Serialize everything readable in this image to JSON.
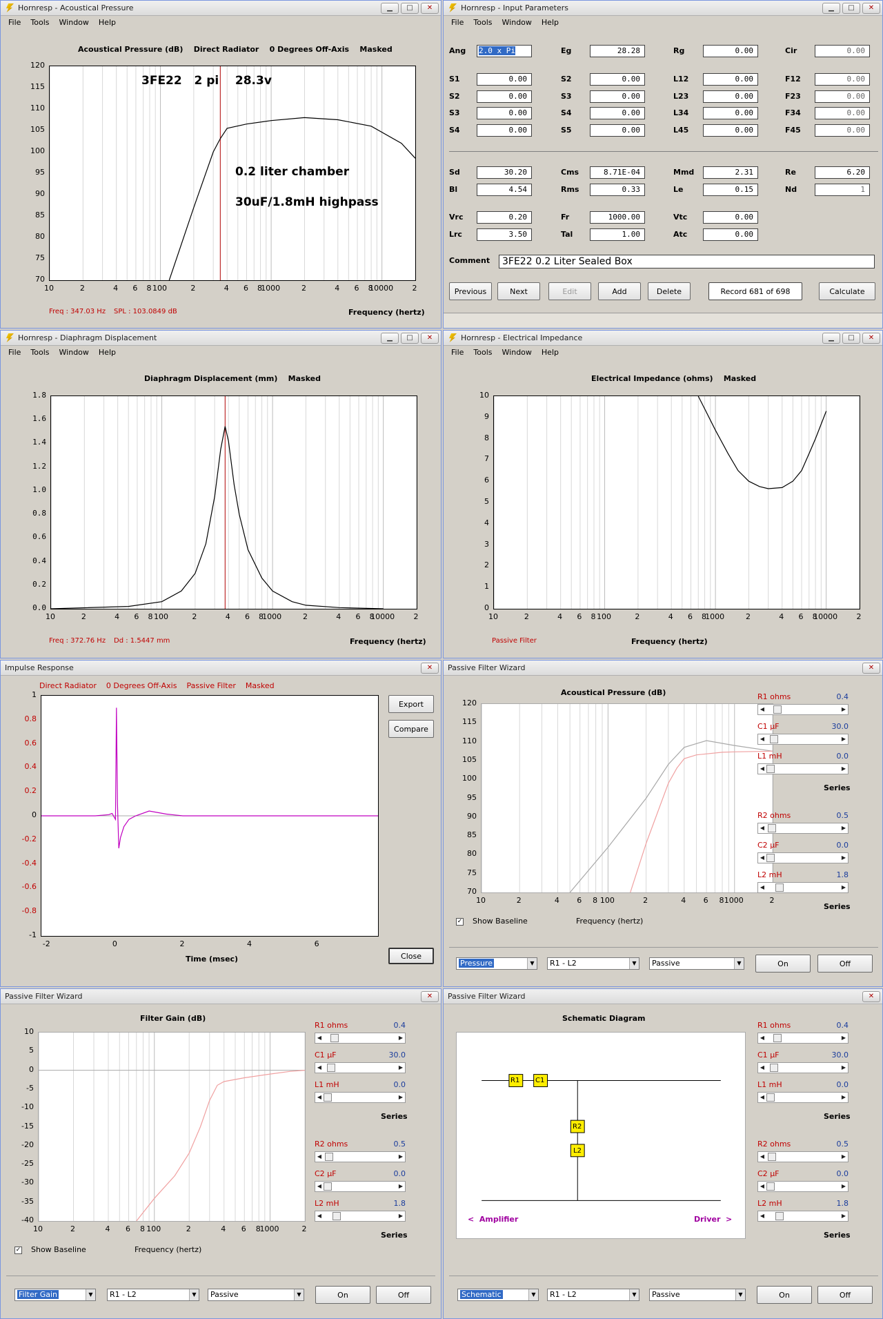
{
  "windows": {
    "acoustic": {
      "title": "Hornresp - Acoustical Pressure",
      "menu": [
        "File",
        "Tools",
        "Window",
        "Help"
      ],
      "chart_title": "Acoustical Pressure (dB)    Direct Radiator    0 Degrees Off-Axis    Masked",
      "ann1": "3FE22   2 pi    28.3v",
      "ann2": "0.2 liter chamber",
      "ann3": "30uF/1.8mH highpass",
      "readout_freq": "Freq : 347.03 Hz",
      "readout_val": "SPL : 103.0849 dB",
      "xlabel": "Frequency (hertz)"
    },
    "input": {
      "title": "Hornresp - Input Parameters",
      "menu": [
        "File",
        "Tools",
        "Window",
        "Help"
      ],
      "comment_label": "Comment",
      "comment": "3FE22  0.2 Liter Sealed Box",
      "buttons": [
        "Previous",
        "Next",
        "Edit",
        "Add",
        "Delete"
      ],
      "record": "Record 681 of 698",
      "calculate": "Calculate"
    },
    "disp": {
      "title": "Hornresp - Diaphragm Displacement",
      "menu": [
        "File",
        "Tools",
        "Window",
        "Help"
      ],
      "chart_title": "Diaphragm Displacement (mm)    Masked",
      "readout_freq": "Freq : 372.76 Hz",
      "readout_val": "Dd : 1.5447 mm",
      "xlabel": "Frequency (hertz)"
    },
    "imp": {
      "title": "Hornresp - Electrical Impedance",
      "menu": [
        "File",
        "Tools",
        "Window",
        "Help"
      ],
      "chart_title": "Electrical Impedance (ohms)    Masked",
      "note": "Passive Filter",
      "xlabel": "Frequency (hertz)"
    },
    "impulse": {
      "title": "Impulse Response",
      "header": [
        "Direct Radiator",
        "0 Degrees Off-Axis",
        "Passive Filter",
        "Masked"
      ],
      "xlabel": "Time (msec)",
      "export": "Export",
      "compare": "Compare",
      "close": "Close"
    },
    "pfw1": {
      "title": "Passive Filter Wizard",
      "chart_title": "Acoustical Pressure (dB)",
      "baseline": "Show Baseline",
      "xlabel": "Frequency (hertz)",
      "combo1": "Pressure",
      "combo2": "R1 - L2",
      "combo3": "Passive",
      "on": "On",
      "off": "Off"
    },
    "pfw2": {
      "title": "Passive Filter Wizard",
      "chart_title": "Filter Gain (dB)",
      "baseline": "Show Baseline",
      "xlabel": "Frequency (hertz)",
      "combo1": "Filter Gain",
      "combo2": "R1 - L2",
      "combo3": "Passive",
      "on": "On",
      "off": "Off"
    },
    "pfw3": {
      "title": "Passive Filter Wizard",
      "chart_title": "Schematic Diagram",
      "amp": "<  Amplifier",
      "drv": "Driver  >",
      "combo1": "Schematic",
      "combo2": "R1 - L2",
      "combo3": "Passive",
      "on": "On",
      "off": "Off",
      "parts": [
        "R1",
        "C1",
        "R2",
        "L2"
      ]
    }
  },
  "filter": {
    "g1": [
      {
        "n": "R1",
        "u": "ohms",
        "v": "0.4",
        "p": 0.1
      },
      {
        "n": "C1",
        "u": "µF",
        "v": "30.0",
        "p": 0.05
      },
      {
        "n": "L1",
        "u": "mH",
        "v": "0.0",
        "p": 0.0
      }
    ],
    "g2": [
      {
        "n": "R2",
        "u": "ohms",
        "v": "0.5",
        "p": 0.02
      },
      {
        "n": "C2",
        "u": "µF",
        "v": "0.0",
        "p": 0.0
      },
      {
        "n": "L2",
        "u": "mH",
        "v": "1.8",
        "p": 0.14
      }
    ],
    "series": "Series"
  },
  "params": {
    "r1": [
      [
        "Ang",
        "2.0 x Pi"
      ],
      [
        "Eg",
        "28.28"
      ],
      [
        "Rg",
        "0.00"
      ],
      [
        "Cir",
        "0.00"
      ]
    ],
    "rows": [
      [
        [
          "S1",
          "0.00"
        ],
        [
          "S2",
          "0.00"
        ],
        [
          "L12",
          "0.00"
        ],
        [
          "F12",
          "0.00"
        ]
      ],
      [
        [
          "S2",
          "0.00"
        ],
        [
          "S3",
          "0.00"
        ],
        [
          "L23",
          "0.00"
        ],
        [
          "F23",
          "0.00"
        ]
      ],
      [
        [
          "S3",
          "0.00"
        ],
        [
          "S4",
          "0.00"
        ],
        [
          "L34",
          "0.00"
        ],
        [
          "F34",
          "0.00"
        ]
      ],
      [
        [
          "S4",
          "0.00"
        ],
        [
          "S5",
          "0.00"
        ],
        [
          "L45",
          "0.00"
        ],
        [
          "F45",
          "0.00"
        ]
      ]
    ],
    "rows2": [
      [
        [
          "Sd",
          "30.20"
        ],
        [
          "Cms",
          "8.71E-04"
        ],
        [
          "Mmd",
          "2.31"
        ],
        [
          "Re",
          "6.20"
        ]
      ],
      [
        [
          "Bl",
          "4.54"
        ],
        [
          "Rms",
          "0.33"
        ],
        [
          "Le",
          "0.15"
        ],
        [
          "Nd",
          "1"
        ]
      ]
    ],
    "rows3": [
      [
        [
          "Vrc",
          "0.20"
        ],
        [
          "Fr",
          "1000.00"
        ],
        [
          "Vtc",
          "0.00"
        ]
      ],
      [
        [
          "Lrc",
          "3.50"
        ],
        [
          "Tal",
          "1.00"
        ],
        [
          "Atc",
          "0.00"
        ]
      ]
    ]
  },
  "chart_data": [
    {
      "type": "line",
      "title": "Acoustical Pressure (dB)",
      "xlabel": "Frequency (hertz)",
      "xscale": "log",
      "xlim": [
        10,
        20000
      ],
      "ylim": [
        70,
        120
      ],
      "x_ticks": [
        "10",
        "2",
        "4",
        "6",
        "8",
        "100",
        "2",
        "4",
        "6",
        "8",
        "1000",
        "2",
        "4",
        "6",
        "8",
        "10000",
        "2"
      ],
      "y_ticks": [
        "120",
        "115",
        "110",
        "105",
        "100",
        "95",
        "90",
        "85",
        "80",
        "75",
        "70"
      ],
      "series": [
        {
          "x": [
            120,
            200,
            300,
            347,
            400,
            600,
            1000,
            2000,
            4000,
            8000,
            15000,
            20000
          ],
          "y": [
            70,
            87,
            100,
            103.08,
            105.5,
            106.5,
            107.3,
            108,
            107.5,
            106,
            102,
            98.5
          ]
        }
      ],
      "marker_x": 347.03
    },
    {
      "type": "line",
      "title": "Diaphragm Displacement (mm)",
      "xlabel": "Frequency (hertz)",
      "xscale": "log",
      "xlim": [
        10,
        20000
      ],
      "ylim": [
        0,
        1.8
      ],
      "x_ticks": [
        "10",
        "2",
        "4",
        "6",
        "8",
        "100",
        "2",
        "4",
        "6",
        "8",
        "1000",
        "2",
        "4",
        "6",
        "8",
        "10000",
        "2"
      ],
      "y_ticks": [
        "1.8",
        "1.6",
        "1.4",
        "1.2",
        "1.0",
        "0.8",
        "0.6",
        "0.4",
        "0.2",
        "0.0"
      ],
      "series": [
        {
          "x": [
            10,
            50,
            100,
            150,
            200,
            250,
            300,
            340,
            372.76,
            400,
            450,
            500,
            600,
            800,
            1000,
            1500,
            2000,
            4000,
            10000
          ],
          "y": [
            0,
            0.02,
            0.06,
            0.15,
            0.3,
            0.55,
            0.95,
            1.35,
            1.5447,
            1.42,
            1.05,
            0.8,
            0.5,
            0.26,
            0.15,
            0.06,
            0.03,
            0.01,
            0
          ]
        }
      ],
      "marker_x": 372.76
    },
    {
      "type": "line",
      "title": "Electrical Impedance (ohms)",
      "xlabel": "Frequency (hertz)",
      "xscale": "log",
      "xlim": [
        10,
        20000
      ],
      "ylim": [
        0,
        10
      ],
      "x_ticks": [
        "10",
        "2",
        "4",
        "6",
        "8",
        "100",
        "2",
        "4",
        "6",
        "8",
        "1000",
        "2",
        "4",
        "6",
        "8",
        "10000",
        "2"
      ],
      "y_ticks": [
        "10",
        "9",
        "8",
        "7",
        "6",
        "5",
        "4",
        "3",
        "2",
        "1",
        "0"
      ],
      "series": [
        {
          "x": [
            700,
            800,
            1000,
            1300,
            1600,
            2000,
            2500,
            3000,
            4000,
            5000,
            6000,
            7000,
            8000,
            10000
          ],
          "y": [
            10,
            9.4,
            8.4,
            7.3,
            6.5,
            6.0,
            5.75,
            5.65,
            5.7,
            6.0,
            6.5,
            7.3,
            8.0,
            9.3
          ]
        }
      ]
    },
    {
      "type": "line",
      "title": "Impulse Response",
      "xlabel": "Time (msec)",
      "xlim": [
        -2.2,
        7.8
      ],
      "ylim": [
        -1,
        1
      ],
      "x_ticks": [
        "-2",
        "0",
        "2",
        "4",
        "6"
      ],
      "y_ticks": [
        "1",
        "0.8",
        "0.6",
        "0.4",
        "0.2",
        "0",
        "-0.2",
        "-0.4",
        "-0.6",
        "-0.8",
        "-1"
      ],
      "series": [
        {
          "x": [
            -2.2,
            -0.6,
            -0.2,
            -0.1,
            0,
            0.03,
            0.06,
            0.1,
            0.15,
            0.25,
            0.4,
            0.6,
            1,
            1.5,
            2,
            3,
            4,
            5,
            6,
            7.8
          ],
          "y": [
            0,
            0,
            0.01,
            0.02,
            -0.03,
            0.9,
            0.1,
            -0.27,
            -0.18,
            -0.09,
            -0.03,
            0,
            0.04,
            0.015,
            0,
            0,
            0,
            0,
            0,
            0
          ]
        }
      ]
    },
    {
      "type": "line",
      "title": "Acoustical Pressure (dB)",
      "xlabel": "Frequency (hertz)",
      "xscale": "log",
      "xlim": [
        10,
        2000
      ],
      "ylim": [
        70,
        120
      ],
      "x_ticks": [
        "10",
        "2",
        "4",
        "6",
        "8",
        "100",
        "2",
        "4",
        "6",
        "8",
        "1000",
        "2"
      ],
      "y_ticks": [
        "120",
        "115",
        "110",
        "105",
        "100",
        "95",
        "90",
        "85",
        "80",
        "75",
        "70"
      ],
      "series": [
        {
          "name": "baseline",
          "x": [
            50,
            100,
            200,
            300,
            400,
            600,
            1000,
            2000
          ],
          "y": [
            70,
            82,
            95,
            104,
            108.5,
            110.3,
            109,
            107.5
          ]
        },
        {
          "name": "filtered",
          "x": [
            150,
            200,
            300,
            350,
            400,
            500,
            800,
            1000,
            2000
          ],
          "y": [
            70,
            83,
            99,
            103,
            105.5,
            106.5,
            107.2,
            107.3,
            107.5
          ]
        }
      ]
    },
    {
      "type": "line",
      "title": "Filter Gain (dB)",
      "xlabel": "Frequency (hertz)",
      "xscale": "log",
      "xlim": [
        10,
        2000
      ],
      "ylim": [
        -40,
        10
      ],
      "x_ticks": [
        "10",
        "2",
        "4",
        "6",
        "8",
        "100",
        "2",
        "4",
        "6",
        "8",
        "1000",
        "2"
      ],
      "y_ticks": [
        "10",
        "5",
        "0",
        "-5",
        "-10",
        "-15",
        "-20",
        "-25",
        "-30",
        "-35",
        "-40"
      ],
      "series": [
        {
          "x": [
            70,
            100,
            150,
            200,
            250,
            300,
            350,
            400,
            600,
            1000,
            1500,
            2000
          ],
          "y": [
            -40,
            -34,
            -28,
            -22,
            -15,
            -8,
            -4,
            -3,
            -2,
            -1,
            -0.3,
            0
          ]
        }
      ]
    }
  ]
}
